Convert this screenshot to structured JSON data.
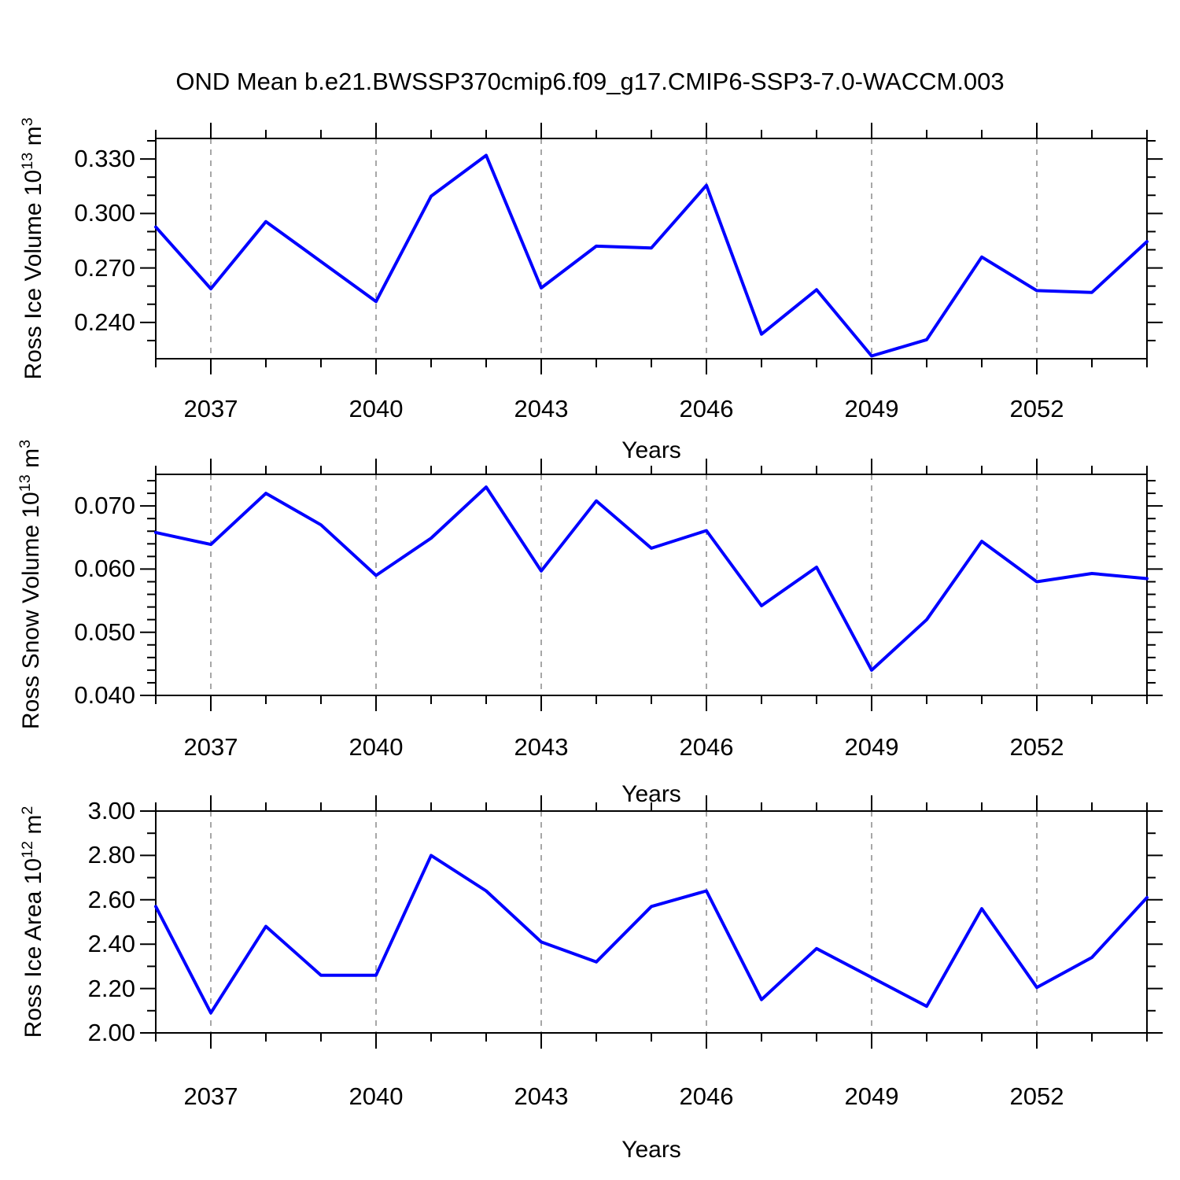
{
  "title": "OND Mean b.e21.BWSSP370cmip6.f09_g17.CMIP6-SSP3-7.0-WACCM.003",
  "accent_color": "#0000ff",
  "chart_data": [
    {
      "type": "line",
      "id": "ross-ice-volume",
      "ylabel_parts": {
        "base": "Ross Ice Volume 10",
        "exp": "13",
        "unit": " m",
        "unit_exp": "3"
      },
      "xlabel": "Years",
      "x": [
        2036,
        2037,
        2038,
        2039,
        2040,
        2041,
        2042,
        2043,
        2044,
        2045,
        2046,
        2047,
        2048,
        2049,
        2050,
        2051,
        2052,
        2053,
        2054
      ],
      "values": [
        0.2925,
        0.2585,
        0.2955,
        0.2735,
        0.2515,
        0.3095,
        0.332,
        0.259,
        0.282,
        0.281,
        0.3155,
        0.2335,
        0.258,
        0.2215,
        0.2305,
        0.276,
        0.2575,
        0.2565,
        0.2845
      ],
      "xlim": [
        2036,
        2054
      ],
      "ylim": [
        0.22,
        0.3413
      ],
      "x_major_ticks": [
        2037,
        2040,
        2043,
        2046,
        2049,
        2052
      ],
      "x_tick_labels": [
        "2037",
        "2040",
        "2043",
        "2046",
        "2049",
        "2052"
      ],
      "x_minor_step": 1,
      "y_ticks": [
        0.24,
        0.27,
        0.3,
        0.33
      ],
      "y_tick_labels": [
        "0.240",
        "0.270",
        "0.300",
        "0.330"
      ],
      "y_minor_step": 0.01,
      "line_color": "#0000ff",
      "grid": "vertical-dashed"
    },
    {
      "type": "line",
      "id": "ross-snow-volume",
      "ylabel_parts": {
        "base": "Ross Snow Volume 10",
        "exp": "13",
        "unit": " m",
        "unit_exp": "3"
      },
      "xlabel": "Years",
      "x": [
        2036,
        2037,
        2038,
        2039,
        2040,
        2041,
        2042,
        2043,
        2044,
        2045,
        2046,
        2047,
        2048,
        2049,
        2050,
        2051,
        2052,
        2053,
        2054
      ],
      "values": [
        0.0658,
        0.0639,
        0.072,
        0.067,
        0.059,
        0.0649,
        0.073,
        0.0597,
        0.0708,
        0.0633,
        0.0661,
        0.0542,
        0.0603,
        0.044,
        0.052,
        0.0644,
        0.058,
        0.0593,
        0.0585
      ],
      "xlim": [
        2036,
        2054
      ],
      "ylim": [
        0.04,
        0.075
      ],
      "x_major_ticks": [
        2037,
        2040,
        2043,
        2046,
        2049,
        2052
      ],
      "x_tick_labels": [
        "2037",
        "2040",
        "2043",
        "2046",
        "2049",
        "2052"
      ],
      "x_minor_step": 1,
      "y_ticks": [
        0.04,
        0.05,
        0.06,
        0.07
      ],
      "y_tick_labels": [
        "0.040",
        "0.050",
        "0.060",
        "0.070"
      ],
      "y_minor_step": 0.002,
      "line_color": "#0000ff",
      "grid": "vertical-dashed"
    },
    {
      "type": "line",
      "id": "ross-ice-area",
      "ylabel_parts": {
        "base": "Ross Ice Area 10",
        "exp": "12",
        "unit": " m",
        "unit_exp": "2"
      },
      "xlabel": "Years",
      "x": [
        2036,
        2037,
        2038,
        2039,
        2040,
        2041,
        2042,
        2043,
        2044,
        2045,
        2046,
        2047,
        2048,
        2049,
        2050,
        2051,
        2052,
        2053,
        2054
      ],
      "values": [
        2.57,
        2.09,
        2.48,
        2.26,
        2.26,
        2.8,
        2.64,
        2.41,
        2.32,
        2.57,
        2.64,
        2.15,
        2.38,
        2.25,
        2.12,
        2.56,
        2.205,
        2.34,
        2.61
      ],
      "xlim": [
        2036,
        2054
      ],
      "ylim": [
        2.0,
        3.0
      ],
      "x_major_ticks": [
        2037,
        2040,
        2043,
        2046,
        2049,
        2052
      ],
      "x_tick_labels": [
        "2037",
        "2040",
        "2043",
        "2046",
        "2049",
        "2052"
      ],
      "x_minor_step": 1,
      "y_ticks": [
        2.0,
        2.2,
        2.4,
        2.6,
        2.8,
        3.0
      ],
      "y_tick_labels": [
        "2.00",
        "2.20",
        "2.40",
        "2.60",
        "2.80",
        "3.00"
      ],
      "y_minor_step": 0.1,
      "line_color": "#0000ff",
      "grid": "vertical-dashed"
    }
  ]
}
